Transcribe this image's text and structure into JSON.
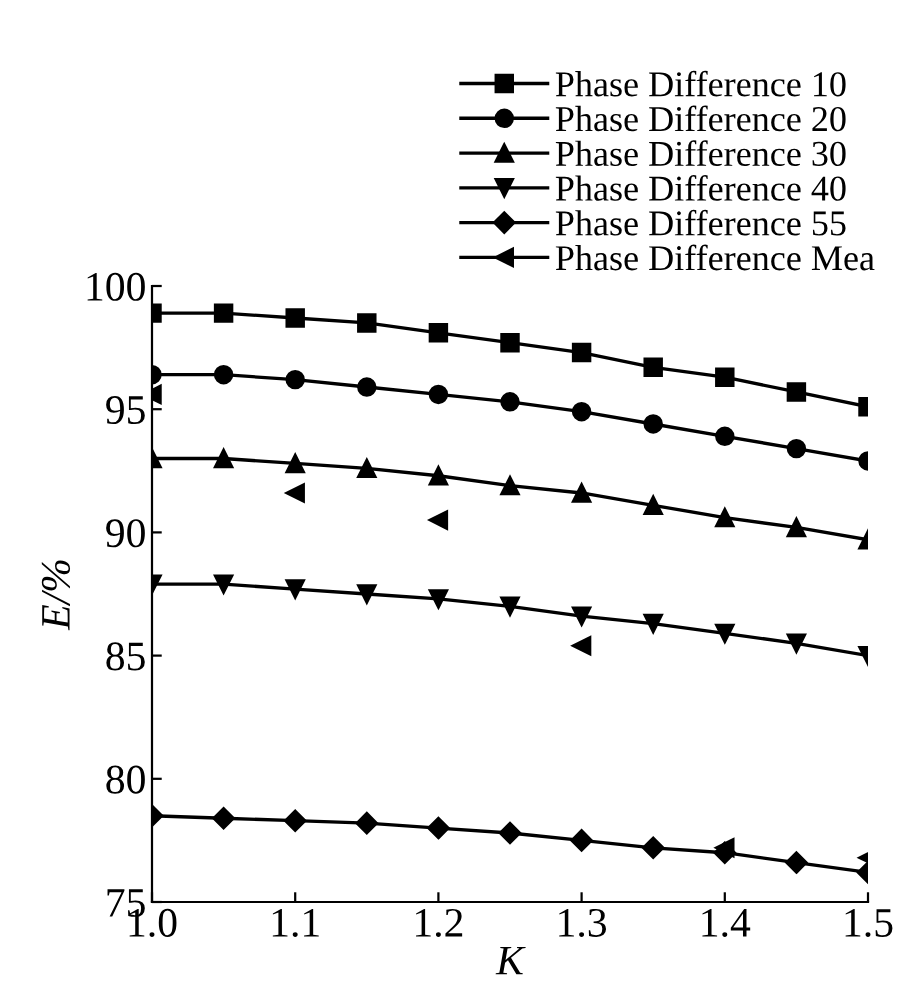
{
  "chart_data": {
    "type": "line",
    "xlabel": "K",
    "ylabel": "E/%",
    "x": [
      1.0,
      1.05,
      1.1,
      1.15,
      1.2,
      1.25,
      1.3,
      1.35,
      1.4,
      1.45,
      1.5
    ],
    "series": [
      {
        "name": "Phase Difference 10",
        "color": "#000000",
        "marker": "square",
        "values": [
          98.9,
          98.9,
          98.7,
          98.5,
          98.1,
          97.7,
          97.3,
          96.7,
          96.3,
          95.7,
          95.1
        ]
      },
      {
        "name": "Phase Difference 20",
        "color": "#000000",
        "marker": "circle",
        "values": [
          96.4,
          96.4,
          96.2,
          95.9,
          95.6,
          95.3,
          94.9,
          94.4,
          93.9,
          93.4,
          92.9
        ]
      },
      {
        "name": "Phase Difference 30",
        "color": "#000000",
        "marker": "triangle",
        "values": [
          93.0,
          93.0,
          92.8,
          92.6,
          92.3,
          91.9,
          91.6,
          91.1,
          90.6,
          90.2,
          89.7
        ]
      },
      {
        "name": "Phase Difference 40",
        "color": "#000000",
        "marker": "triangle-down",
        "values": [
          87.9,
          87.9,
          87.7,
          87.5,
          87.3,
          87.0,
          86.6,
          86.3,
          85.9,
          85.5,
          85.0
        ]
      },
      {
        "name": "Phase Difference 55",
        "color": "#000000",
        "marker": "diamond",
        "values": [
          78.5,
          78.4,
          78.3,
          78.2,
          78.0,
          77.8,
          77.5,
          77.2,
          77.0,
          76.6,
          76.2
        ]
      },
      {
        "name": "Phase Difference Mea",
        "color": "#000000",
        "marker": "triangle-left",
        "type": "scatter",
        "x": [
          1.0,
          1.1,
          1.2,
          1.3,
          1.4,
          1.5
        ],
        "values": [
          95.6,
          91.6,
          90.5,
          85.4,
          77.2,
          76.8
        ]
      }
    ],
    "xlim": [
      1.0,
      1.5
    ],
    "xticks": [
      {
        "value": 1.0,
        "label": "1.0"
      },
      1.1,
      1.2,
      1.3,
      1.4,
      1.5
    ],
    "ylim": [
      75,
      100
    ],
    "yticks": [
      75,
      80,
      85,
      90,
      95,
      100
    ],
    "grid": false,
    "legend": "top right",
    "line_style": "solid"
  }
}
